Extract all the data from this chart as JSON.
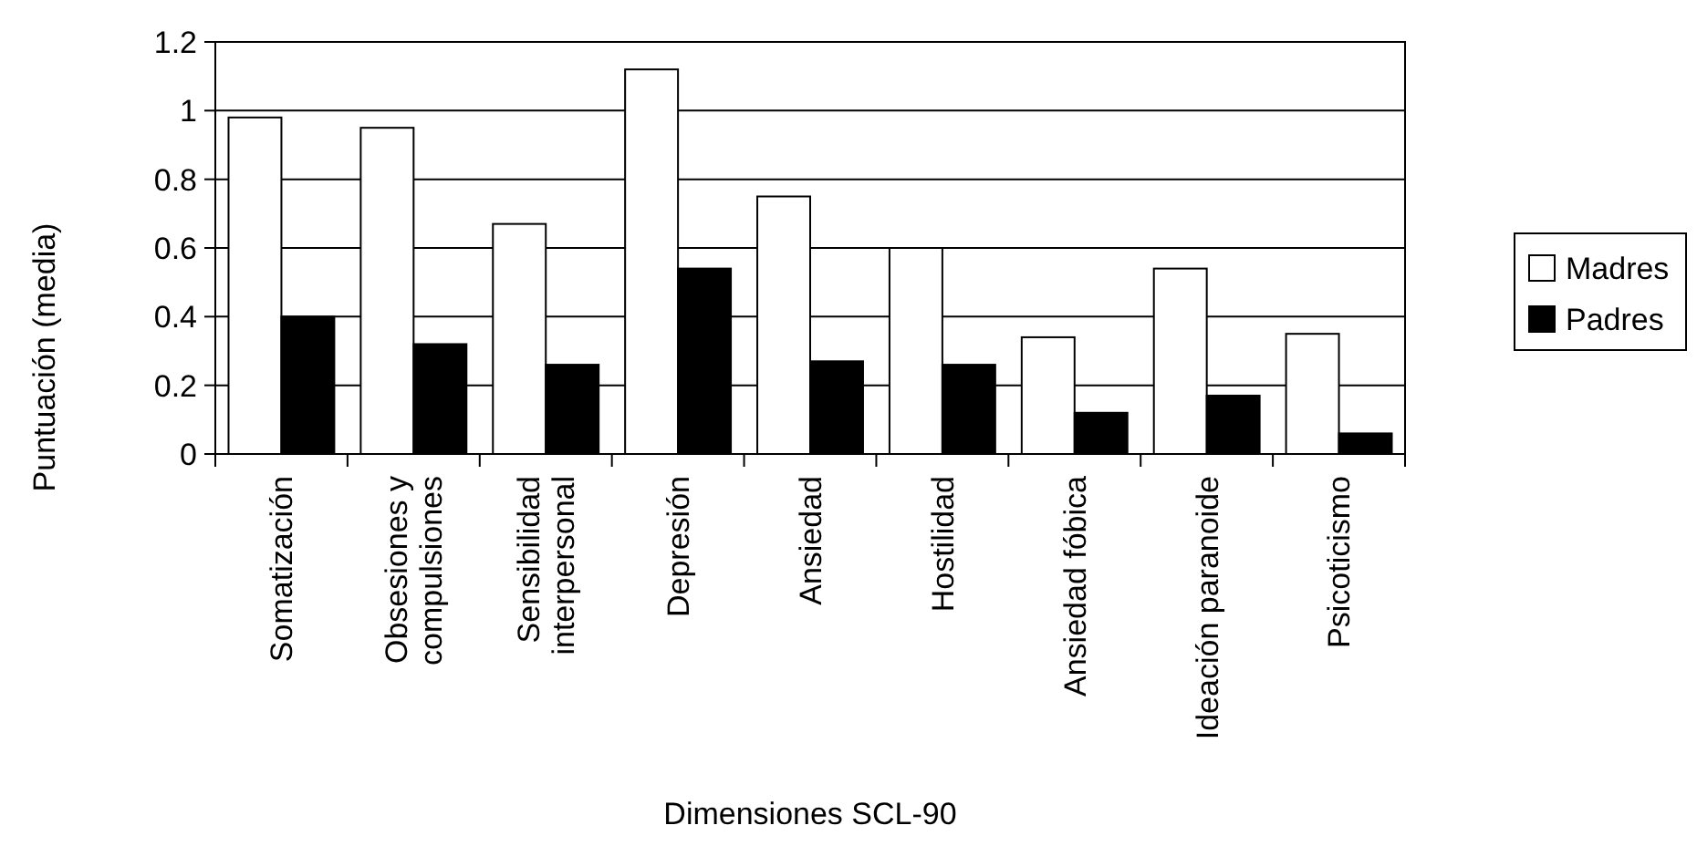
{
  "chart_data": {
    "type": "bar",
    "xlabel": "Dimensiones SCL-90",
    "ylabel": "Puntuación (media)",
    "categories": [
      "Somatización",
      "Obsesiones y\ncompulsiones",
      "Sensibilidad\ninterpersonal",
      "Depresión",
      "Ansiedad",
      "Hostilidad",
      "Ansiedad fóbica",
      "Ideación paranoide",
      "Psicoticismo"
    ],
    "series": [
      {
        "name": "Madres",
        "color": "#ffffff",
        "values": [
          0.98,
          0.95,
          0.67,
          1.12,
          0.75,
          0.6,
          0.34,
          0.54,
          0.35
        ]
      },
      {
        "name": "Padres",
        "color": "#000000",
        "values": [
          0.4,
          0.32,
          0.26,
          0.54,
          0.27,
          0.26,
          0.12,
          0.17,
          0.06
        ]
      }
    ],
    "ylim": [
      0,
      1.2
    ],
    "yticks": [
      0,
      0.2,
      0.4,
      0.6,
      0.8,
      1,
      1.2
    ],
    "grid": "y",
    "legend": "right"
  }
}
